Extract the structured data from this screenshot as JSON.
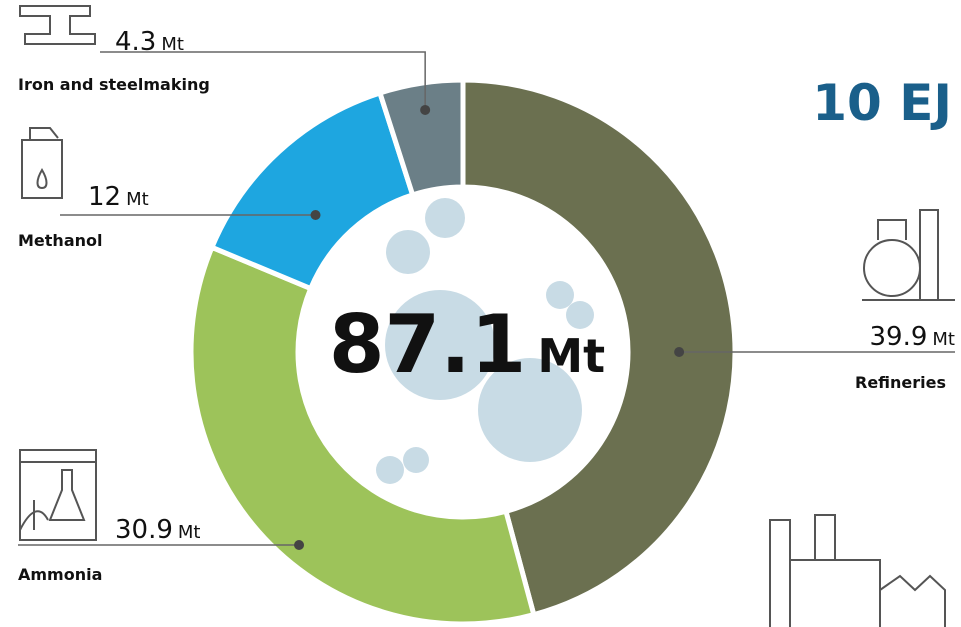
{
  "chart_data": {
    "type": "donut",
    "title": "10 EJ",
    "categories": [
      "Refineries",
      "Ammonia",
      "Methanol",
      "Iron and steelmaking"
    ],
    "values": [
      39.9,
      30.9,
      12,
      4.3
    ],
    "unit": "Mt",
    "colors": [
      "#6b7050",
      "#9dc35a",
      "#1ea6e0",
      "#6b7f87"
    ],
    "center_value": 87.1
  }
}
